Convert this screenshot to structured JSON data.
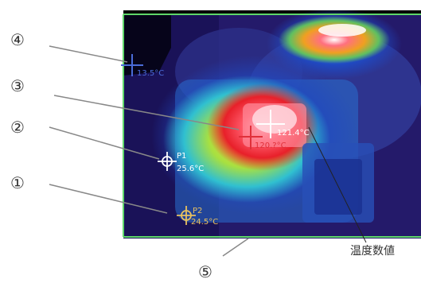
{
  "callouts": {
    "c1": "①",
    "c2": "②",
    "c3": "③",
    "c4": "④",
    "c5": "⑤"
  },
  "annotation_label": "温度数値",
  "markers": {
    "cold_spot": {
      "temperature": "13.5°C"
    },
    "hot_spot": {
      "temperature": "121.4°C"
    },
    "cursor": {
      "temperature": "120.?°C"
    },
    "p1": {
      "name": "P1",
      "temperature": "25.6°C"
    },
    "p2": {
      "name": "P2",
      "temperature": "24.5°C"
    }
  },
  "colors": {
    "cold_marker": "#4a6bd8",
    "hot_marker": "#ffffff",
    "cursor_marker": "#e0303a",
    "p1_marker": "#ffffff",
    "p2_marker": "#e8c060",
    "frame_line": "#5fd66a",
    "leader_line": "#888888"
  }
}
